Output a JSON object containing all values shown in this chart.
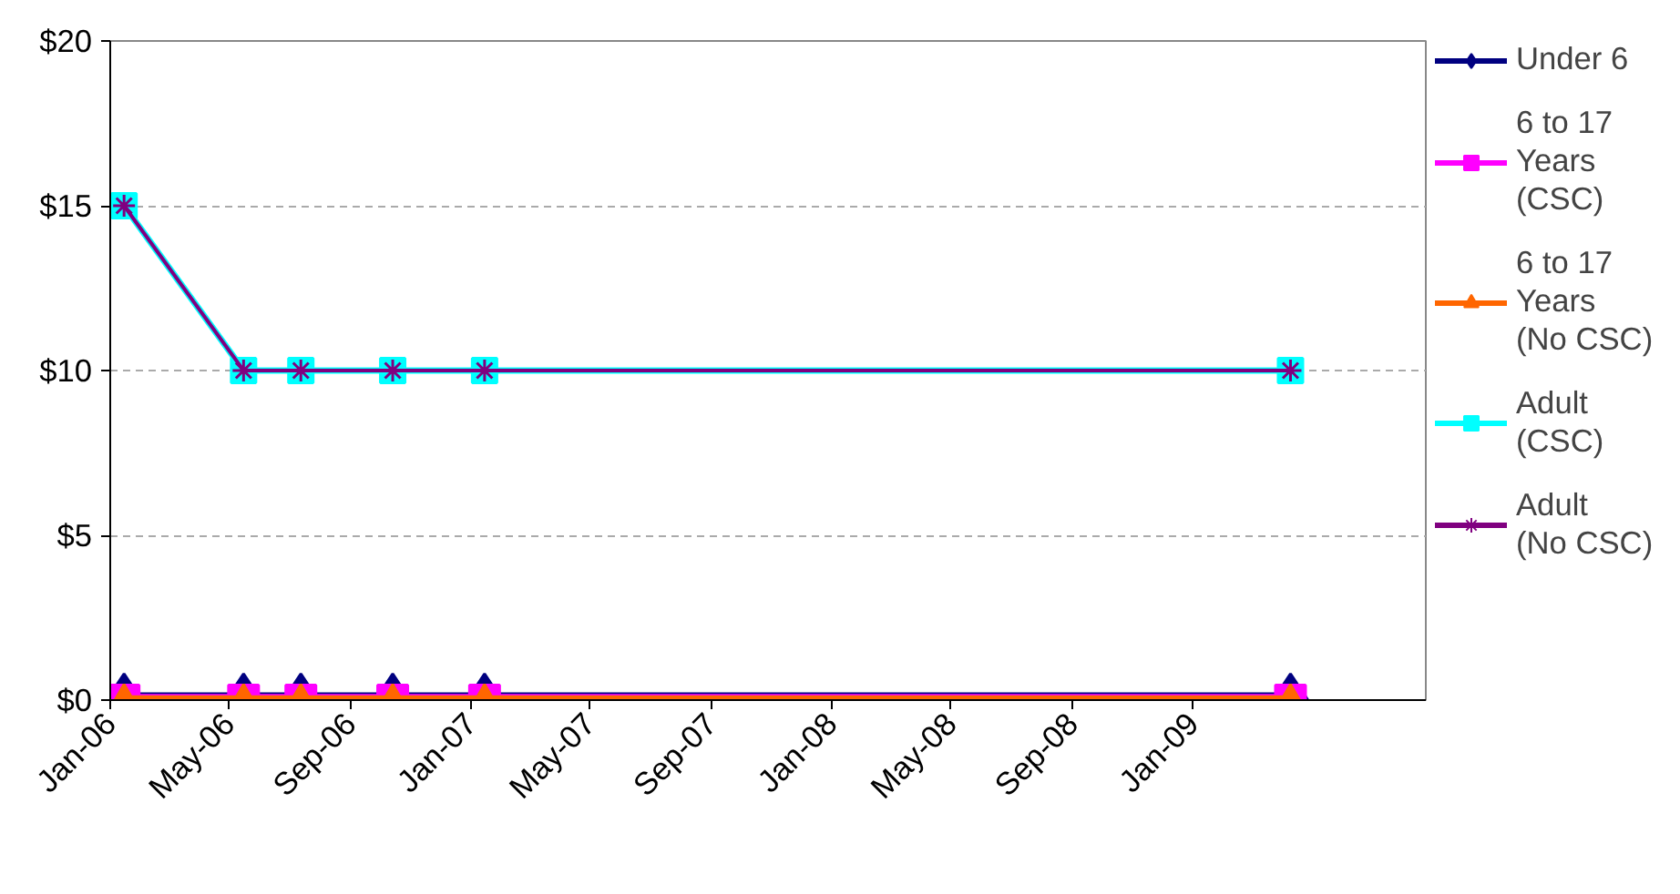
{
  "chart_data": {
    "type": "line",
    "x": [
      "2006-01-15",
      "2006-05-16",
      "2006-07-13",
      "2006-10-14",
      "2007-01-15",
      "2009-04-10"
    ],
    "series": [
      {
        "name": "Under 6",
        "color": "#000080",
        "marker": "diamond",
        "values": [
          0,
          0,
          0,
          0,
          0,
          0
        ]
      },
      {
        "name": "6 to 17\nYears\n(CSC)",
        "color": "#ff00ff",
        "marker": "square",
        "values": [
          0,
          0,
          0,
          0,
          0,
          0
        ]
      },
      {
        "name": "6 to 17\nYears\n(No CSC)",
        "color": "#ff6600",
        "marker": "triangle",
        "values": [
          0,
          0,
          0,
          0,
          0,
          0
        ]
      },
      {
        "name": "Adult\n(CSC)",
        "color": "#00ffff",
        "marker": "square",
        "values": [
          15,
          10,
          10,
          10,
          10,
          10
        ]
      },
      {
        "name": "Adult\n(No CSC)",
        "color": "#800080",
        "marker": "cross",
        "values": [
          15,
          10,
          10,
          10,
          10,
          10
        ]
      }
    ],
    "xlim": [
      "2006-01-01",
      "2009-08-25"
    ],
    "xticks": [
      {
        "value": "2006-01-01",
        "label": "Jan-06"
      },
      {
        "value": "2006-05-01",
        "label": "May-06"
      },
      {
        "value": "2006-09-01",
        "label": "Sep-06"
      },
      {
        "value": "2007-01-01",
        "label": "Jan-07"
      },
      {
        "value": "2007-05-01",
        "label": "May-07"
      },
      {
        "value": "2007-09-01",
        "label": "Sep-07"
      },
      {
        "value": "2008-01-01",
        "label": "Jan-08"
      },
      {
        "value": "2008-05-01",
        "label": "May-08"
      },
      {
        "value": "2008-09-01",
        "label": "Sep-08"
      },
      {
        "value": "2009-01-01",
        "label": "Jan-09"
      }
    ],
    "ylim": [
      0,
      20
    ],
    "yticks": [
      {
        "value": 0,
        "label": "$0"
      },
      {
        "value": 5,
        "label": "$5"
      },
      {
        "value": 10,
        "label": "$10"
      },
      {
        "value": 15,
        "label": "$15"
      },
      {
        "value": 20,
        "label": "$20"
      }
    ],
    "grid": "y",
    "legend": "right",
    "line_style": "solid"
  }
}
